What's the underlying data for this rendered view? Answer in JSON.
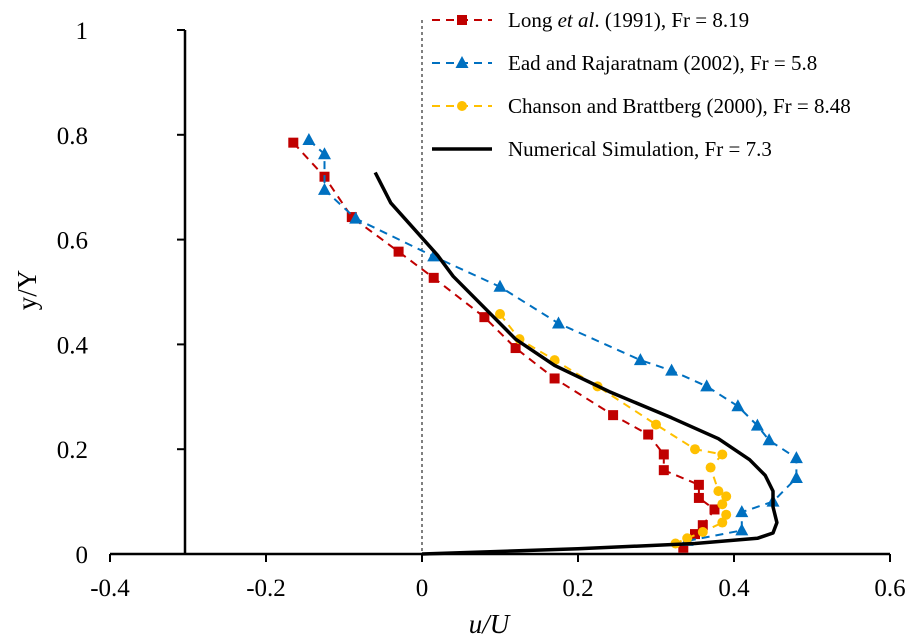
{
  "chart_data": {
    "type": "line",
    "xlabel": "u/U",
    "ylabel": "y/Y",
    "xlim": [
      -0.4,
      0.6
    ],
    "ylim": [
      0,
      1
    ],
    "xticks": [
      "-0.4",
      "-0.2",
      "0",
      "0.2",
      "0.4",
      "0.6"
    ],
    "yticks": [
      "0",
      "0.2",
      "0.4",
      "0.6",
      "0.8",
      "1"
    ],
    "grid": false,
    "legend_position": "top-right",
    "series": [
      {
        "name": "Long et al. (1991), Fr = 8.19",
        "legend_parts": [
          "Long ",
          "et al",
          ". (1991), Fr = 8.19"
        ],
        "color": "#C00000",
        "marker": "square",
        "line": "dashed",
        "points": [
          [
            -0.165,
            0.785
          ],
          [
            -0.125,
            0.72
          ],
          [
            -0.09,
            0.643
          ],
          [
            -0.03,
            0.577
          ],
          [
            0.015,
            0.527
          ],
          [
            0.08,
            0.452
          ],
          [
            0.12,
            0.393
          ],
          [
            0.17,
            0.335
          ],
          [
            0.245,
            0.265
          ],
          [
            0.29,
            0.228
          ],
          [
            0.31,
            0.19
          ],
          [
            0.31,
            0.16
          ],
          [
            0.355,
            0.132
          ],
          [
            0.355,
            0.107
          ],
          [
            0.375,
            0.085
          ],
          [
            0.36,
            0.055
          ],
          [
            0.35,
            0.038
          ],
          [
            0.335,
            0.012
          ]
        ]
      },
      {
        "name": "Ead and Rajaratnam (2002), Fr = 5.8",
        "color": "#0070C0",
        "marker": "triangle",
        "line": "dashed",
        "points": [
          [
            -0.145,
            0.79
          ],
          [
            -0.125,
            0.763
          ],
          [
            -0.125,
            0.695
          ],
          [
            -0.085,
            0.64
          ],
          [
            0.015,
            0.568
          ],
          [
            0.1,
            0.51
          ],
          [
            0.175,
            0.44
          ],
          [
            0.28,
            0.37
          ],
          [
            0.32,
            0.35
          ],
          [
            0.365,
            0.32
          ],
          [
            0.405,
            0.282
          ],
          [
            0.43,
            0.245
          ],
          [
            0.445,
            0.217
          ],
          [
            0.48,
            0.183
          ],
          [
            0.48,
            0.145
          ],
          [
            0.45,
            0.1
          ],
          [
            0.41,
            0.08
          ],
          [
            0.41,
            0.045
          ],
          [
            0.34,
            0.025
          ]
        ]
      },
      {
        "name": "Chanson and Brattberg (2000), Fr = 8.48",
        "color": "#FFC000",
        "marker": "circle",
        "line": "dashed",
        "points": [
          [
            0.1,
            0.458
          ],
          [
            0.125,
            0.41
          ],
          [
            0.17,
            0.37
          ],
          [
            0.225,
            0.32
          ],
          [
            0.3,
            0.247
          ],
          [
            0.35,
            0.2
          ],
          [
            0.385,
            0.19
          ],
          [
            0.37,
            0.165
          ],
          [
            0.38,
            0.12
          ],
          [
            0.39,
            0.11
          ],
          [
            0.385,
            0.095
          ],
          [
            0.39,
            0.075
          ],
          [
            0.385,
            0.06
          ],
          [
            0.36,
            0.042
          ],
          [
            0.34,
            0.03
          ],
          [
            0.325,
            0.02
          ]
        ]
      },
      {
        "name": "Numerical Simulation, Fr = 7.3",
        "color": "#000000",
        "marker": "none",
        "line": "solid",
        "points": [
          [
            -0.06,
            0.728
          ],
          [
            -0.04,
            0.67
          ],
          [
            -0.01,
            0.62
          ],
          [
            0.02,
            0.57
          ],
          [
            0.04,
            0.53
          ],
          [
            0.08,
            0.47
          ],
          [
            0.12,
            0.41
          ],
          [
            0.17,
            0.36
          ],
          [
            0.24,
            0.31
          ],
          [
            0.32,
            0.26
          ],
          [
            0.38,
            0.22
          ],
          [
            0.42,
            0.18
          ],
          [
            0.44,
            0.15
          ],
          [
            0.45,
            0.12
          ],
          [
            0.45,
            0.09
          ],
          [
            0.455,
            0.06
          ],
          [
            0.45,
            0.04
          ],
          [
            0.43,
            0.03
          ],
          [
            0.35,
            0.02
          ],
          [
            0.2,
            0.01
          ],
          [
            0.0,
            0.0
          ]
        ]
      }
    ]
  }
}
